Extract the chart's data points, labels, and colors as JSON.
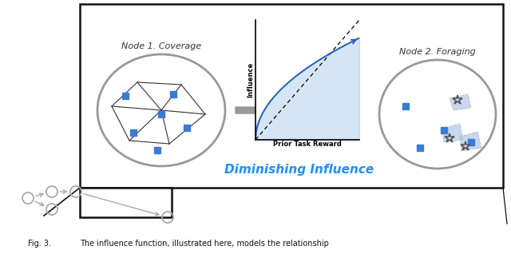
{
  "fig_width": 6.4,
  "fig_height": 3.18,
  "dpi": 100,
  "background_color": "#ffffff",
  "node1_label": "Node 1. Coverage",
  "node2_label": "Node 2. Foraging",
  "diminishing_label": "Diminishing Influence",
  "diminishing_color": "#1E90FF",
  "plot_xlabel": "Prior Task Reward",
  "plot_ylabel": "Influence",
  "blue_sq_color": "#3A7BD5",
  "light_blue_color": "#AEC6E8",
  "node_circle_color": "#aaaaaa",
  "voronoi_color": "#333333",
  "arrow_color": "#888888",
  "text_color": "#333333",
  "box_border": "#111111",
  "small_graph_color": "#aaaaaa"
}
